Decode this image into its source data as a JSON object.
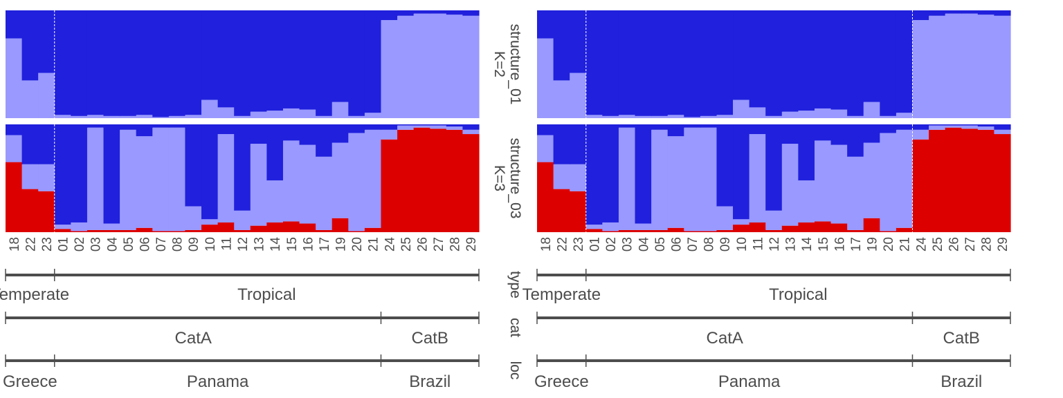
{
  "chart_data": [
    {
      "type": "bar",
      "stacked": true,
      "panel": "left",
      "x": [
        "18",
        "22",
        "23",
        "01",
        "02",
        "03",
        "04",
        "05",
        "06",
        "07",
        "08",
        "09",
        "10",
        "11",
        "12",
        "13",
        "14",
        "15",
        "16",
        "17",
        "19",
        "20",
        "21",
        "24",
        "25",
        "26",
        "27",
        "28",
        "29"
      ],
      "rows": [
        {
          "strip_label": "structure_01\nK=2",
          "series": [
            {
              "color": "#9999ff",
              "values": [
                0.74,
                0.35,
                0.42,
                0.03,
                0.02,
                0.03,
                0.02,
                0.02,
                0.03,
                0.01,
                0.02,
                0.03,
                0.17,
                0.1,
                0.02,
                0.06,
                0.07,
                0.09,
                0.08,
                0.02,
                0.15,
                0.02,
                0.05,
                0.91,
                0.95,
                0.97,
                0.97,
                0.96,
                0.95
              ]
            },
            {
              "color": "#2020dd",
              "values": [
                0.26,
                0.65,
                0.58,
                0.97,
                0.98,
                0.97,
                0.98,
                0.98,
                0.97,
                0.99,
                0.98,
                0.97,
                0.83,
                0.9,
                0.98,
                0.94,
                0.93,
                0.91,
                0.92,
                0.98,
                0.85,
                0.98,
                0.95,
                0.09,
                0.05,
                0.03,
                0.03,
                0.04,
                0.05
              ]
            }
          ]
        },
        {
          "strip_label": "structure_03\nK=3",
          "series": [
            {
              "color": "#dd0000",
              "values": [
                0.65,
                0.4,
                0.38,
                0.03,
                0.01,
                0.02,
                0.02,
                0.02,
                0.04,
                0.01,
                0.01,
                0.02,
                0.07,
                0.09,
                0.02,
                0.06,
                0.09,
                0.1,
                0.08,
                0.02,
                0.13,
                0.01,
                0.04,
                0.86,
                0.95,
                0.97,
                0.96,
                0.95,
                0.91
              ]
            },
            {
              "color": "#9999ff",
              "values": [
                0.25,
                0.23,
                0.25,
                0.04,
                0.08,
                0.95,
                0.06,
                0.93,
                0.85,
                0.96,
                0.96,
                0.22,
                0.05,
                0.82,
                0.18,
                0.76,
                0.39,
                0.75,
                0.73,
                0.68,
                0.7,
                0.91,
                0.91,
                0.09,
                0.04,
                0.02,
                0.03,
                0.03,
                0.04
              ]
            },
            {
              "color": "#2020dd",
              "values": [
                0.1,
                0.37,
                0.37,
                0.93,
                0.91,
                0.03,
                0.92,
                0.05,
                0.11,
                0.03,
                0.03,
                0.76,
                0.88,
                0.09,
                0.8,
                0.18,
                0.52,
                0.15,
                0.19,
                0.3,
                0.17,
                0.08,
                0.05,
                0.05,
                0.01,
                0.01,
                0.01,
                0.02,
                0.05
              ]
            }
          ]
        }
      ],
      "tracks": [
        {
          "label": "type",
          "groups": [
            {
              "name": "Temperate",
              "start": 0,
              "end": 3
            },
            {
              "name": "Tropical",
              "start": 3,
              "end": 29
            }
          ]
        },
        {
          "label": "cat",
          "groups": [
            {
              "name": "CatA",
              "start": 0,
              "end": 23
            },
            {
              "name": "CatB",
              "start": 23,
              "end": 29
            }
          ]
        },
        {
          "label": "loc",
          "groups": [
            {
              "name": "Greece",
              "start": 0,
              "end": 3
            },
            {
              "name": "Panama",
              "start": 3,
              "end": 23
            },
            {
              "name": "Brazil",
              "start": 23,
              "end": 29
            }
          ]
        }
      ],
      "dividers_after_index": [
        2
      ]
    },
    {
      "type": "bar",
      "stacked": true,
      "panel": "right",
      "x": [
        "18",
        "22",
        "23",
        "01",
        "02",
        "03",
        "04",
        "05",
        "06",
        "07",
        "08",
        "09",
        "10",
        "11",
        "12",
        "13",
        "14",
        "15",
        "16",
        "17",
        "19",
        "20",
        "21",
        "24",
        "25",
        "26",
        "27",
        "28",
        "29"
      ],
      "rows": [
        {
          "strip_label": "structure_01\nK=2",
          "series": [
            {
              "color": "#9999ff",
              "values": [
                0.74,
                0.35,
                0.42,
                0.03,
                0.02,
                0.03,
                0.02,
                0.02,
                0.03,
                0.01,
                0.02,
                0.03,
                0.17,
                0.1,
                0.02,
                0.06,
                0.07,
                0.09,
                0.08,
                0.02,
                0.15,
                0.02,
                0.05,
                0.91,
                0.95,
                0.97,
                0.97,
                0.96,
                0.95
              ]
            },
            {
              "color": "#2020dd",
              "values": [
                0.26,
                0.65,
                0.58,
                0.97,
                0.98,
                0.97,
                0.98,
                0.98,
                0.97,
                0.99,
                0.98,
                0.97,
                0.83,
                0.9,
                0.98,
                0.94,
                0.93,
                0.91,
                0.92,
                0.98,
                0.85,
                0.98,
                0.95,
                0.09,
                0.05,
                0.03,
                0.03,
                0.04,
                0.05
              ]
            }
          ]
        },
        {
          "strip_label": "structure_03\nK=3",
          "series": [
            {
              "color": "#dd0000",
              "values": [
                0.65,
                0.4,
                0.38,
                0.03,
                0.01,
                0.02,
                0.02,
                0.02,
                0.04,
                0.01,
                0.01,
                0.02,
                0.07,
                0.09,
                0.02,
                0.06,
                0.09,
                0.1,
                0.08,
                0.02,
                0.13,
                0.01,
                0.04,
                0.86,
                0.95,
                0.97,
                0.96,
                0.95,
                0.91
              ]
            },
            {
              "color": "#9999ff",
              "values": [
                0.25,
                0.23,
                0.25,
                0.04,
                0.08,
                0.95,
                0.06,
                0.93,
                0.85,
                0.96,
                0.96,
                0.22,
                0.05,
                0.82,
                0.18,
                0.76,
                0.39,
                0.75,
                0.73,
                0.68,
                0.7,
                0.91,
                0.91,
                0.09,
                0.04,
                0.02,
                0.03,
                0.03,
                0.04
              ]
            },
            {
              "color": "#2020dd",
              "values": [
                0.1,
                0.37,
                0.37,
                0.93,
                0.91,
                0.03,
                0.92,
                0.05,
                0.11,
                0.03,
                0.03,
                0.76,
                0.88,
                0.09,
                0.8,
                0.18,
                0.52,
                0.15,
                0.19,
                0.3,
                0.17,
                0.08,
                0.05,
                0.05,
                0.01,
                0.01,
                0.01,
                0.02,
                0.05
              ]
            }
          ]
        }
      ],
      "tracks": [
        {
          "label": "type",
          "groups": [
            {
              "name": "Temperate",
              "start": 0,
              "end": 3
            },
            {
              "name": "Tropical",
              "start": 3,
              "end": 29
            }
          ]
        },
        {
          "label": "cat",
          "groups": [
            {
              "name": "CatA",
              "start": 0,
              "end": 23
            },
            {
              "name": "CatB",
              "start": 23,
              "end": 29
            }
          ]
        },
        {
          "label": "loc",
          "groups": [
            {
              "name": "Greece",
              "start": 0,
              "end": 3
            },
            {
              "name": "Panama",
              "start": 3,
              "end": 23
            },
            {
              "name": "Brazil",
              "start": 23,
              "end": 29
            }
          ]
        }
      ],
      "dividers_after_index": [
        2,
        22
      ]
    }
  ]
}
